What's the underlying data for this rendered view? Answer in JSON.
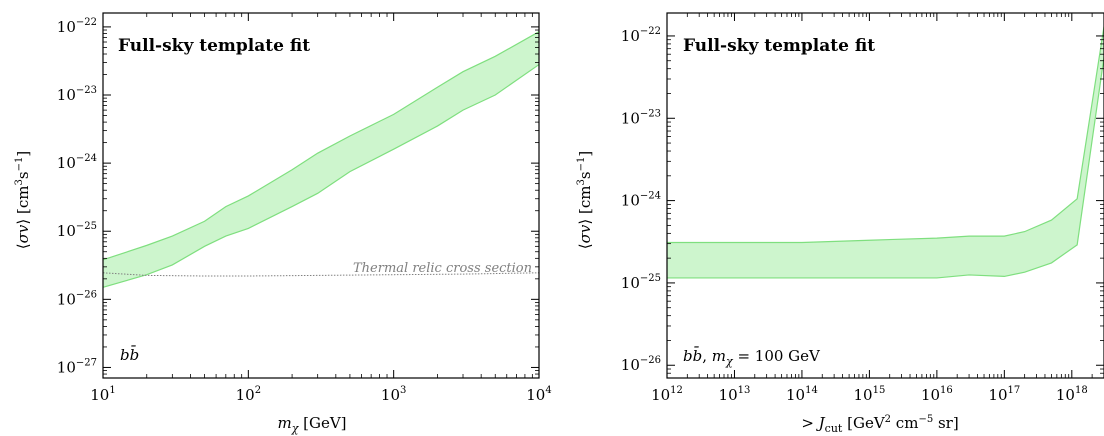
{
  "colors": {
    "band_fill": "#cdf5cd",
    "band_edge": "#7fdf7f",
    "relic_line": "#808080",
    "axes": "#000000"
  },
  "chart_data": [
    {
      "type": "area",
      "title": "Full-sky template fit",
      "annotation": "bb̄",
      "xlabel": "m_χ [GeV]",
      "ylabel": "⟨σv⟩ [cm³s⁻¹]",
      "xscale": "log",
      "yscale": "log",
      "xlim": [
        10,
        10000
      ],
      "ylim": [
        7e-28,
        1.6e-22
      ],
      "grid": false,
      "x_ticks": [
        {
          "base": "10",
          "exp": "1",
          "value": 10
        },
        {
          "base": "10",
          "exp": "2",
          "value": 100
        },
        {
          "base": "10",
          "exp": "3",
          "value": 1000
        },
        {
          "base": "10",
          "exp": "4",
          "value": 10000
        }
      ],
      "y_ticks": [
        {
          "base": "10",
          "exp": "−27",
          "value": 1e-27
        },
        {
          "base": "10",
          "exp": "−26",
          "value": 1e-26
        },
        {
          "base": "10",
          "exp": "−25",
          "value": 1e-25
        },
        {
          "base": "10",
          "exp": "−24",
          "value": 1e-24
        },
        {
          "base": "10",
          "exp": "−23",
          "value": 1e-23
        },
        {
          "base": "10",
          "exp": "−22",
          "value": 1e-22
        }
      ],
      "band": {
        "x": [
          10,
          20,
          30,
          50,
          70,
          100,
          200,
          300,
          500,
          1000,
          2000,
          3000,
          5000,
          10000
        ],
        "upper": [
          3.8e-26,
          6.2e-26,
          8.5e-26,
          1.4e-25,
          2.3e-25,
          3.3e-25,
          8e-25,
          1.4e-24,
          2.5e-24,
          5.2e-24,
          1.3e-23,
          2.2e-23,
          3.7e-23,
          8.5e-23
        ],
        "lower": [
          1.5e-26,
          2.3e-26,
          3.2e-26,
          6e-26,
          8.5e-26,
          1.1e-25,
          2.3e-25,
          3.6e-25,
          7.5e-25,
          1.6e-24,
          3.5e-24,
          6e-24,
          1e-23,
          2.8e-23
        ]
      },
      "relic_line": {
        "label": "Thermal relic cross section",
        "x": [
          10,
          20,
          50,
          100,
          300,
          1000,
          3000,
          10000
        ],
        "y": [
          2.45e-26,
          2.25e-26,
          2.2e-26,
          2.2e-26,
          2.25e-26,
          2.3e-26,
          2.35e-26,
          2.45e-26
        ]
      }
    },
    {
      "type": "area",
      "title": "Full-sky template fit",
      "annotation": "bb̄, m_χ = 100 GeV",
      "xlabel": "> J_cut [GeV² cm⁻⁵ sr]",
      "ylabel": "⟨σv⟩ [cm³s⁻¹]",
      "xscale": "log",
      "yscale": "log",
      "xlim": [
        1000000000000.0,
        3e+18
      ],
      "ylim": [
        7e-27,
        1.9e-22
      ],
      "grid": false,
      "x_ticks": [
        {
          "base": "10",
          "exp": "12",
          "value": 1000000000000.0
        },
        {
          "base": "10",
          "exp": "13",
          "value": 10000000000000.0
        },
        {
          "base": "10",
          "exp": "14",
          "value": 100000000000000.0
        },
        {
          "base": "10",
          "exp": "15",
          "value": 1000000000000000.0
        },
        {
          "base": "10",
          "exp": "16",
          "value": 1e+16
        },
        {
          "base": "10",
          "exp": "17",
          "value": 1e+17
        },
        {
          "base": "10",
          "exp": "18",
          "value": 1e+18
        }
      ],
      "y_ticks": [
        {
          "base": "10",
          "exp": "−26",
          "value": 1e-26
        },
        {
          "base": "10",
          "exp": "−25",
          "value": 1e-25
        },
        {
          "base": "10",
          "exp": "−24",
          "value": 1e-24
        },
        {
          "base": "10",
          "exp": "−23",
          "value": 1e-23
        },
        {
          "base": "10",
          "exp": "−22",
          "value": 1e-22
        }
      ],
      "band": {
        "x": [
          1000000000000.0,
          10000000000000.0,
          100000000000000.0,
          1000000000000000.0,
          3000000000000000.0,
          1e+16,
          3e+16,
          1e+17,
          2e+17,
          5e+17,
          1.2e+18,
          3e+18
        ],
        "upper": [
          3.1e-25,
          3.1e-25,
          3.1e-25,
          3.3e-25,
          3.4e-25,
          3.5e-25,
          3.7e-25,
          3.7e-25,
          4.2e-25,
          5.8e-25,
          1.05e-24,
          1.3e-22
        ],
        "lower": [
          1.15e-25,
          1.15e-25,
          1.15e-25,
          1.15e-25,
          1.15e-25,
          1.15e-25,
          1.25e-25,
          1.2e-25,
          1.35e-25,
          1.75e-25,
          2.9e-25,
          5.5e-23
        ]
      }
    }
  ]
}
